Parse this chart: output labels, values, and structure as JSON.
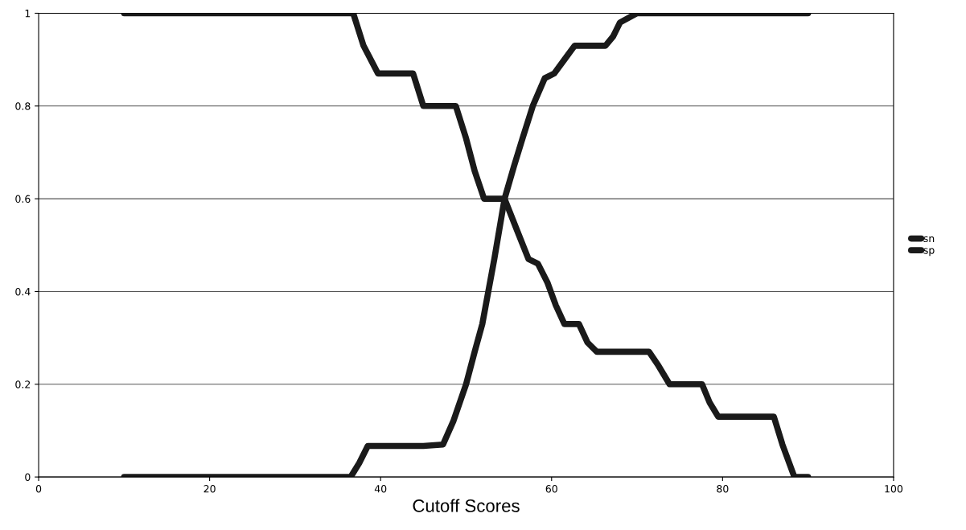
{
  "chart_data": {
    "type": "line",
    "xlabel": "Cutoff Scores",
    "xlim": [
      0,
      100
    ],
    "xticks": [
      0,
      20,
      40,
      60,
      80,
      100
    ],
    "ylim": [
      0,
      1
    ],
    "yticks": [
      0,
      0.2,
      0.4,
      0.6,
      0.8,
      1
    ],
    "grid": "y",
    "legend": "right",
    "marker": "none",
    "line_style": "solid",
    "series": [
      {
        "name": "sn",
        "color": "#1a1a1a",
        "x": [
          10,
          20,
          30,
          36.8,
          38,
          39.7,
          42,
          43.8,
          45,
          47,
          48.8,
          50,
          51,
          52.1,
          53,
          54.5,
          56,
          57.3,
          58.4,
          59.5,
          60.5,
          61.5,
          63.2,
          64.2,
          65.3,
          68,
          71.4,
          72.5,
          73.8,
          76,
          77.6,
          78.5,
          79.5,
          83,
          86,
          87,
          88.4,
          90
        ],
        "values": [
          1,
          1,
          1,
          1,
          0.93,
          0.87,
          0.87,
          0.87,
          0.8,
          0.8,
          0.8,
          0.73,
          0.66,
          0.6,
          0.6,
          0.6,
          0.53,
          0.47,
          0.46,
          0.42,
          0.37,
          0.33,
          0.33,
          0.29,
          0.27,
          0.27,
          0.27,
          0.24,
          0.2,
          0.2,
          0.2,
          0.16,
          0.13,
          0.13,
          0.13,
          0.07,
          0,
          0
        ]
      },
      {
        "name": "sp",
        "color": "#1a1a1a",
        "x": [
          10,
          20,
          30,
          36.5,
          37.5,
          38.5,
          42,
          45,
          47.3,
          48.5,
          50,
          51,
          51.9,
          53.3,
          54.5,
          55.6,
          56.6,
          57.8,
          59.2,
          60.3,
          61.5,
          62.7,
          64.5,
          66.3,
          67.2,
          68,
          70,
          80,
          90
        ],
        "values": [
          0,
          0,
          0,
          0,
          0.03,
          0.067,
          0.067,
          0.067,
          0.07,
          0.12,
          0.2,
          0.27,
          0.33,
          0.47,
          0.6,
          0.67,
          0.73,
          0.8,
          0.86,
          0.87,
          0.9,
          0.93,
          0.93,
          0.93,
          0.95,
          0.98,
          1,
          1,
          1
        ]
      }
    ]
  }
}
